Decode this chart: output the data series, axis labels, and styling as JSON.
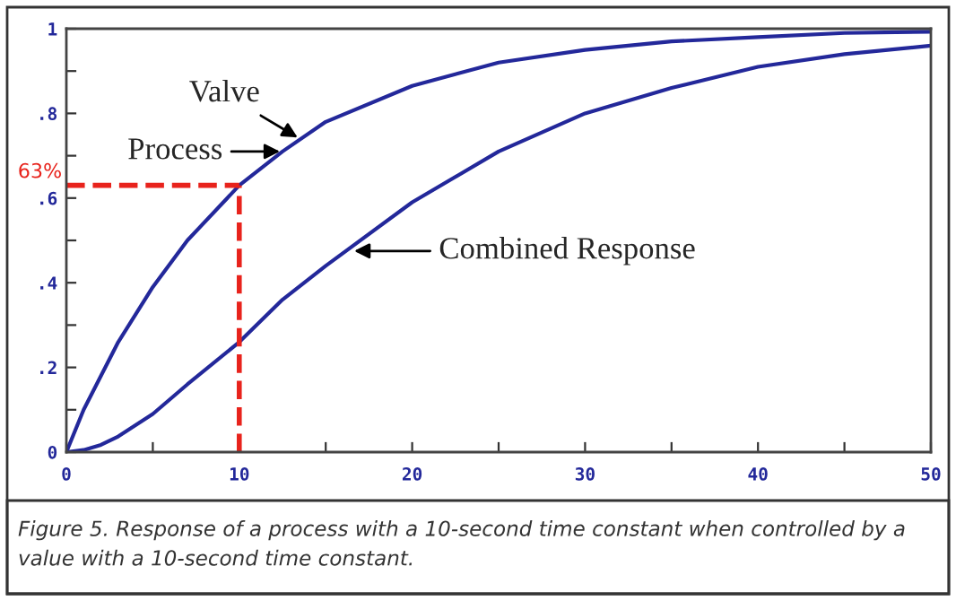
{
  "chart_data": {
    "type": "line",
    "x": [
      0,
      1,
      2,
      3,
      5,
      7,
      10,
      12.5,
      15,
      20,
      25,
      30,
      35,
      40,
      45,
      50
    ],
    "series": [
      {
        "color": "#23289a",
        "values": [
          0,
          0.1,
          0.18,
          0.26,
          0.39,
          0.5,
          0.63,
          0.71,
          0.78,
          0.865,
          0.92,
          0.95,
          0.97,
          0.98,
          0.99,
          0.993
        ]
      },
      {
        "color": "#23289a",
        "values": [
          0,
          0.005,
          0.017,
          0.037,
          0.09,
          0.16,
          0.26,
          0.36,
          0.44,
          0.59,
          0.71,
          0.8,
          0.86,
          0.91,
          0.94,
          0.96
        ]
      }
    ],
    "xlim": [
      0,
      50
    ],
    "ylim": [
      0,
      1
    ],
    "xticks": [
      0,
      {
        "value": 5,
        "label": null
      },
      10,
      {
        "value": 15,
        "label": null
      },
      20,
      {
        "value": 25,
        "label": null
      },
      30,
      {
        "value": 35,
        "label": null
      },
      40,
      {
        "value": 45,
        "label": null
      },
      50
    ],
    "yticks": [
      0,
      {
        "value": 0.1,
        "label": null
      },
      {
        "value": 0.2,
        "label": ".2"
      },
      {
        "value": 0.3,
        "label": null
      },
      {
        "value": 0.4,
        "label": ".4"
      },
      {
        "value": 0.5,
        "label": null
      },
      {
        "value": 0.6,
        "label": ".6"
      },
      {
        "value": 0.7,
        "label": null
      },
      {
        "value": 0.8,
        "label": ".8"
      },
      {
        "value": 0.9,
        "label": null
      },
      1
    ],
    "grid": false,
    "legend": false,
    "marker": "none",
    "line_style": "solid",
    "ref_lines": [
      {
        "axis": "y",
        "value": 0.63,
        "label": "63%",
        "color": "#e8231c",
        "line_style": "dashed"
      },
      {
        "axis": "x",
        "value": 10,
        "color": "#e8231c",
        "line_style": "dashed"
      }
    ],
    "annotations": [
      {
        "text": "Valve",
        "x": 13.5,
        "y": 0.74
      },
      {
        "text": "Process",
        "x": 12.5,
        "y": 0.71
      },
      {
        "text": "Combined Response",
        "x": 16.5,
        "y": 0.475
      },
      "Figure 5. Response of a process with a 10-second time constant when controlled by a value with a 10-second time constant."
    ]
  }
}
